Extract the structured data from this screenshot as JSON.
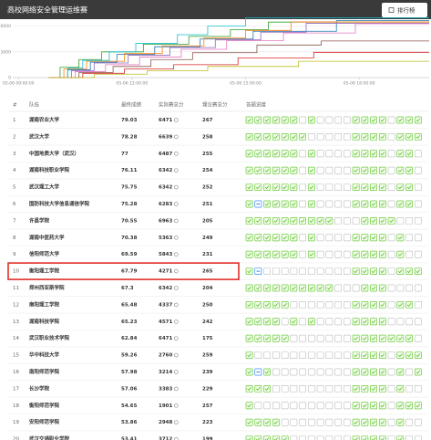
{
  "header": {
    "title": "高校网络安全管理运维赛",
    "button": "排行榜"
  },
  "chart_data": {
    "type": "line",
    "step": true,
    "xlim": [
      8.85,
      19.85
    ],
    "xticks": [
      {
        "value": 9,
        "label": "05-06 09:00:00"
      },
      {
        "value": 12,
        "label": "05-06 12:00:00"
      },
      {
        "value": 15,
        "label": "05-06 15:00:00"
      },
      {
        "value": 18,
        "label": "05-06 18:00:00"
      }
    ],
    "ylim": [
      0,
      6600
    ],
    "yticks": [
      0,
      3000,
      6000
    ],
    "grid": true,
    "series": [
      {
        "color": "#2ca02c",
        "x": [
          9.8,
          10.1,
          10.6,
          11.2,
          12.3,
          13.5,
          14.6,
          15.6,
          19.85
        ],
        "values": [
          0,
          1200,
          2100,
          3000,
          3900,
          4800,
          5600,
          6471,
          6471
        ]
      },
      {
        "color": "#1f77b4",
        "x": [
          9.8,
          10.3,
          10.9,
          11.6,
          12.6,
          13.8,
          15.2,
          17.4,
          19.85
        ],
        "values": [
          0,
          900,
          1800,
          2700,
          3600,
          4500,
          5400,
          6639,
          6639
        ]
      },
      {
        "color": "#ff7f0e",
        "x": [
          9.8,
          10.2,
          10.8,
          11.8,
          12.8,
          13.9,
          15.0,
          16.2,
          19.85
        ],
        "values": [
          0,
          1000,
          1900,
          2800,
          3700,
          4600,
          5500,
          6487,
          6487
        ]
      },
      {
        "color": "#9467bd",
        "x": [
          9.8,
          10.4,
          11.0,
          11.9,
          13.0,
          14.2,
          15.4,
          16.6,
          19.85
        ],
        "values": [
          0,
          800,
          1700,
          2600,
          3500,
          4400,
          5300,
          6342,
          6342
        ]
      },
      {
        "color": "#e377c2",
        "x": [
          9.8,
          10.5,
          11.3,
          12.2,
          13.3,
          14.5,
          16.0,
          17.9,
          19.85
        ],
        "values": [
          0,
          700,
          1500,
          2400,
          3300,
          4300,
          5200,
          6283,
          6283
        ]
      },
      {
        "color": "#17becf",
        "x": [
          9.8,
          10.3,
          10.7,
          11.4,
          12.1,
          13.2,
          14.0,
          15.0,
          19.85
        ],
        "values": [
          0,
          1100,
          2000,
          3000,
          4000,
          5000,
          6000,
          6963,
          6963
        ]
      },
      {
        "color": "#8c564b",
        "x": [
          9.8,
          10.6,
          11.5,
          12.5,
          13.6,
          15.3,
          17.0,
          19.85
        ],
        "values": [
          0,
          600,
          1300,
          2100,
          2900,
          3800,
          4271,
          4271
        ]
      },
      {
        "color": "#d62728",
        "x": [
          9.8,
          10.7,
          11.8,
          13.1,
          14.8,
          16.8,
          19.85
        ],
        "values": [
          0,
          500,
          1000,
          1500,
          2300,
          2948,
          2948
        ]
      },
      {
        "color": "#bcbd22",
        "x": [
          9.8,
          11.0,
          12.4,
          14.0,
          16.4,
          19.85
        ],
        "values": [
          0,
          400,
          800,
          1300,
          1901,
          1901
        ]
      }
    ]
  },
  "table": {
    "columns": [
      "#",
      "队伍",
      "最终成绩",
      "实际赛总分",
      "理论赛总分",
      "答题进度"
    ],
    "highlight": 9,
    "rows": [
      [
        1,
        "湖南农业大学",
        79.03,
        6471,
        267
      ],
      [
        2,
        "武汉大学",
        78.28,
        6639,
        258
      ],
      [
        3,
        "中国地质大学（武汉）",
        77,
        6487,
        255
      ],
      [
        4,
        "湖南科技职业学院",
        76.11,
        6342,
        254
      ],
      [
        5,
        "武汉理工大学",
        75.75,
        6342,
        252
      ],
      [
        6,
        "国防科技大学信息通信学院",
        75.28,
        6283,
        251
      ],
      [
        7,
        "许昌学院",
        70.55,
        6963,
        205
      ],
      [
        8,
        "湖南中医药大学",
        70.38,
        5363,
        249
      ],
      [
        9,
        "信阳师范大学",
        69.59,
        5843,
        231
      ],
      [
        10,
        "衡阳理工学院",
        67.79,
        4271,
        265
      ],
      [
        11,
        "郑州西亚斯学院",
        67.3,
        6342,
        204
      ],
      [
        12,
        "南阳理工学院",
        65.48,
        4337,
        250
      ],
      [
        13,
        "湖南科技学院",
        65.23,
        4571,
        242
      ],
      [
        14,
        "武汉职业技术学院",
        62.84,
        6471,
        175
      ],
      [
        15,
        "华中科技大学",
        59.26,
        2760,
        259
      ],
      [
        16,
        "南阳师范学院",
        57.98,
        3214,
        239
      ],
      [
        17,
        "长沙学院",
        57.06,
        3383,
        229
      ],
      [
        18,
        "衡阳师范学院",
        54.65,
        1901,
        257
      ],
      [
        19,
        "安阳师范学院",
        53.86,
        2948,
        223
      ],
      [
        20,
        "武汉交通职业学院",
        53.41,
        3712,
        199
      ]
    ],
    "progress": [
      [
        1,
        1,
        1,
        1,
        1,
        1,
        0,
        1,
        0,
        0,
        0,
        0,
        1,
        1,
        1,
        1,
        0,
        1,
        1,
        1
      ],
      [
        1,
        1,
        1,
        1,
        1,
        1,
        1,
        0,
        0,
        0,
        0,
        0,
        1,
        1,
        1,
        1,
        0,
        1,
        1,
        1
      ],
      [
        1,
        1,
        1,
        1,
        1,
        1,
        0,
        1,
        0,
        0,
        0,
        0,
        1,
        1,
        1,
        1,
        0,
        1,
        1,
        0
      ],
      [
        1,
        1,
        1,
        1,
        1,
        1,
        0,
        1,
        0,
        0,
        0,
        0,
        1,
        1,
        1,
        1,
        0,
        1,
        1,
        0
      ],
      [
        1,
        1,
        1,
        1,
        1,
        1,
        0,
        1,
        0,
        0,
        0,
        0,
        1,
        1,
        1,
        1,
        0,
        1,
        1,
        0
      ],
      [
        1,
        2,
        1,
        1,
        1,
        1,
        0,
        1,
        0,
        0,
        0,
        0,
        1,
        1,
        1,
        1,
        0,
        1,
        1,
        0
      ],
      [
        1,
        1,
        1,
        1,
        1,
        1,
        1,
        1,
        1,
        1,
        0,
        0,
        0,
        1,
        1,
        1,
        1,
        0,
        0,
        0
      ],
      [
        1,
        1,
        1,
        1,
        1,
        1,
        0,
        1,
        0,
        0,
        0,
        0,
        1,
        1,
        1,
        1,
        0,
        1,
        0,
        0
      ],
      [
        1,
        1,
        1,
        1,
        1,
        1,
        0,
        1,
        0,
        0,
        0,
        0,
        1,
        1,
        1,
        1,
        0,
        1,
        0,
        0
      ],
      [
        1,
        2,
        0,
        0,
        0,
        0,
        0,
        0,
        0,
        0,
        0,
        0,
        1,
        1,
        1,
        1,
        0,
        1,
        1,
        1
      ],
      [
        1,
        1,
        1,
        1,
        1,
        1,
        1,
        1,
        1,
        1,
        0,
        0,
        0,
        1,
        1,
        1,
        0,
        0,
        0,
        0
      ],
      [
        1,
        1,
        1,
        1,
        1,
        0,
        0,
        0,
        0,
        0,
        0,
        0,
        1,
        1,
        1,
        1,
        0,
        1,
        1,
        0
      ],
      [
        1,
        1,
        1,
        1,
        0,
        1,
        0,
        1,
        0,
        0,
        0,
        0,
        1,
        1,
        1,
        1,
        0,
        0,
        0,
        0
      ],
      [
        1,
        1,
        1,
        1,
        1,
        0,
        0,
        0,
        0,
        0,
        0,
        0,
        1,
        1,
        1,
        1,
        1,
        1,
        1,
        0
      ],
      [
        1,
        0,
        0,
        0,
        0,
        0,
        0,
        0,
        0,
        0,
        0,
        0,
        1,
        1,
        1,
        1,
        0,
        1,
        1,
        1
      ],
      [
        1,
        2,
        1,
        0,
        0,
        0,
        0,
        0,
        0,
        0,
        0,
        0,
        1,
        1,
        1,
        1,
        0,
        1,
        0,
        1
      ],
      [
        1,
        1,
        1,
        0,
        0,
        0,
        0,
        0,
        0,
        0,
        0,
        0,
        1,
        1,
        1,
        1,
        0,
        1,
        0,
        0
      ],
      [
        1,
        0,
        0,
        0,
        0,
        0,
        0,
        0,
        0,
        0,
        0,
        0,
        1,
        1,
        1,
        1,
        0,
        1,
        1,
        1
      ],
      [
        1,
        1,
        1,
        1,
        0,
        0,
        0,
        0,
        0,
        0,
        0,
        0,
        1,
        1,
        1,
        1,
        0,
        1,
        0,
        0
      ],
      [
        1,
        1,
        1,
        1,
        1,
        0,
        0,
        0,
        0,
        0,
        0,
        0,
        1,
        1,
        1,
        1,
        0,
        1,
        0,
        0
      ]
    ]
  }
}
